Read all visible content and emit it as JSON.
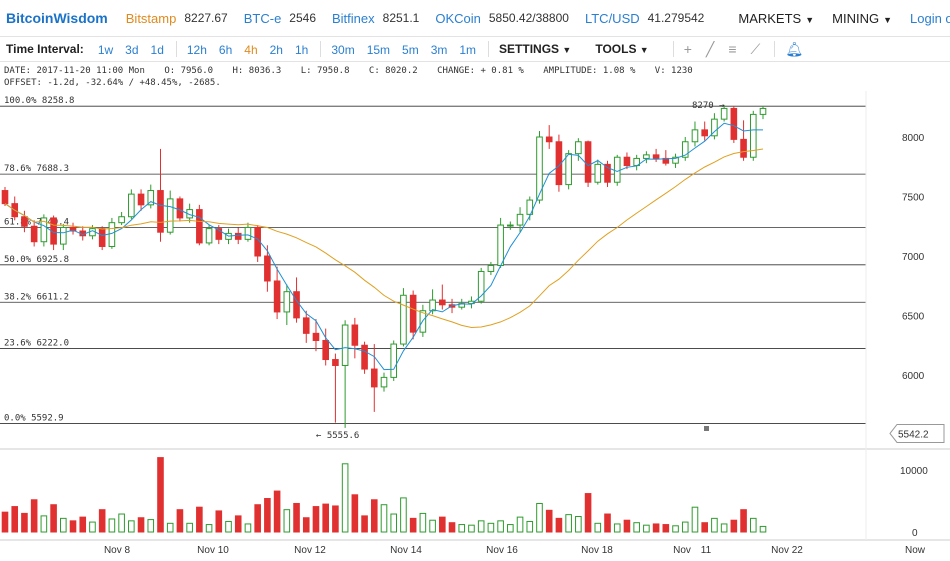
{
  "topbar": {
    "brand": "BitcoinWisdom",
    "exchanges": [
      {
        "name": "Bitstamp",
        "price": "8227.67",
        "active": true
      },
      {
        "name": "BTC-e",
        "price": "2546",
        "active": false
      },
      {
        "name": "Bitfinex",
        "price": "8251.1",
        "active": false
      },
      {
        "name": "OKCoin",
        "price": "5850.42/38800",
        "active": false
      },
      {
        "name": "LTC/USD",
        "price": "41.279542",
        "active": false
      }
    ],
    "markets_label": "MARKETS",
    "mining_label": "MINING",
    "login_label": "Login or"
  },
  "toolbar": {
    "interval_label": "Time Interval:",
    "intervals_a": [
      {
        "label": "1w",
        "active": false
      },
      {
        "label": "3d",
        "active": false
      },
      {
        "label": "1d",
        "active": false
      }
    ],
    "intervals_b": [
      {
        "label": "12h",
        "active": false
      },
      {
        "label": "6h",
        "active": false
      },
      {
        "label": "4h",
        "active": true
      },
      {
        "label": "2h",
        "active": false
      },
      {
        "label": "1h",
        "active": false
      }
    ],
    "intervals_c": [
      {
        "label": "30m",
        "active": false
      },
      {
        "label": "15m",
        "active": false
      },
      {
        "label": "5m",
        "active": false
      },
      {
        "label": "3m",
        "active": false
      },
      {
        "label": "1m",
        "active": false
      }
    ],
    "settings_label": "SETTINGS",
    "tools_label": "TOOLS",
    "tool_icons": [
      "crosshair-icon",
      "line-icon",
      "menu-icon",
      "fan-icon"
    ],
    "bell_icon": "bell-icon"
  },
  "info": {
    "line1": [
      "DATE: 2017-11-20 11:00 Mon",
      "O: 7956.0",
      "H: 8036.3",
      "L: 7950.8",
      "C: 8020.2",
      "CHANGE: + 0.81 %",
      "AMPLITUDE: 1.08 %",
      "V: 1230"
    ],
    "line2": "OFFSET: -1.2d, -32.64% / +48.45%, -2685."
  },
  "chart_data": {
    "type": "candlestick",
    "interval": "4h",
    "price_axis_ticks": [
      6000,
      6500,
      7000,
      7500,
      8000
    ],
    "volume_axis_ticks": [
      0,
      10000
    ],
    "date_ticks": [
      "Nov 8",
      "Nov 10",
      "Nov 12",
      "Nov 14",
      "Nov 16",
      "Nov 18",
      "Nov",
      "11",
      "Nov 22",
      "Now"
    ],
    "current_price_label": "5542.2",
    "fib_levels": [
      {
        "label": "100.0% 8258.8",
        "value": 8258.8
      },
      {
        "label": "78.6% 7688.3",
        "value": 7688.3
      },
      {
        "label": "61.8% 7240.4",
        "value": 7240.4
      },
      {
        "label": "50.0% 6925.8",
        "value": 6925.8
      },
      {
        "label": "38.2% 6611.2",
        "value": 6611.2
      },
      {
        "label": "23.6% 6222.0",
        "value": 6222.0
      },
      {
        "label": "0.0% 5592.9",
        "value": 5592.9
      }
    ],
    "annotations": [
      {
        "text": "8270 →",
        "value": 8270
      },
      {
        "text": "← 5555.6",
        "value": 5555.6
      }
    ],
    "candles": [
      [
        7550,
        7580,
        7420,
        7440,
        3200
      ],
      [
        7440,
        7500,
        7300,
        7330,
        4100
      ],
      [
        7330,
        7380,
        7200,
        7250,
        3000
      ],
      [
        7250,
        7300,
        7080,
        7120,
        5200
      ],
      [
        7120,
        7350,
        7080,
        7320,
        2600
      ],
      [
        7320,
        7340,
        7050,
        7100,
        4400
      ],
      [
        7100,
        7270,
        7050,
        7240,
        2200
      ],
      [
        7240,
        7280,
        7180,
        7210,
        1800
      ],
      [
        7210,
        7250,
        7130,
        7170,
        2400
      ],
      [
        7170,
        7260,
        7140,
        7230,
        1600
      ],
      [
        7230,
        7250,
        7050,
        7080,
        3600
      ],
      [
        7080,
        7320,
        7060,
        7280,
        2100
      ],
      [
        7280,
        7370,
        7260,
        7330,
        2900
      ],
      [
        7330,
        7560,
        7310,
        7520,
        1800
      ],
      [
        7520,
        7560,
        7380,
        7430,
        2300
      ],
      [
        7430,
        7600,
        7400,
        7550,
        2000
      ],
      [
        7550,
        7900,
        7120,
        7200,
        12000
      ],
      [
        7200,
        7550,
        7180,
        7480,
        1400
      ],
      [
        7480,
        7500,
        7290,
        7320,
        3600
      ],
      [
        7320,
        7440,
        7280,
        7390,
        1400
      ],
      [
        7390,
        7430,
        7090,
        7110,
        4000
      ],
      [
        7110,
        7260,
        7090,
        7230,
        1200
      ],
      [
        7230,
        7260,
        7100,
        7140,
        3400
      ],
      [
        7140,
        7230,
        7100,
        7190,
        1700
      ],
      [
        7190,
        7240,
        7100,
        7140,
        2600
      ],
      [
        7140,
        7280,
        7120,
        7240,
        1300
      ],
      [
        7240,
        7260,
        6950,
        7000,
        4400
      ],
      [
        7000,
        7090,
        6700,
        6790,
        5400
      ],
      [
        6790,
        6910,
        6470,
        6530,
        6600
      ],
      [
        6530,
        6760,
        6420,
        6700,
        3600
      ],
      [
        6700,
        6820,
        6440,
        6480,
        4600
      ],
      [
        6480,
        6540,
        6270,
        6350,
        2300
      ],
      [
        6350,
        6470,
        6200,
        6290,
        4100
      ],
      [
        6290,
        6390,
        6080,
        6130,
        4500
      ],
      [
        6130,
        6180,
        5600,
        6080,
        4200
      ],
      [
        6080,
        6460,
        5555.6,
        6420,
        11000
      ],
      [
        6420,
        6480,
        6140,
        6250,
        6000
      ],
      [
        6250,
        6280,
        6010,
        6050,
        2600
      ],
      [
        6050,
        6260,
        5690,
        5900,
        5200
      ],
      [
        5900,
        6020,
        5860,
        5980,
        4400
      ],
      [
        5980,
        6290,
        5950,
        6260,
        2900
      ],
      [
        6260,
        6730,
        6240,
        6670,
        5500
      ],
      [
        6670,
        6710,
        6300,
        6360,
        2200
      ],
      [
        6360,
        6590,
        6320,
        6540,
        3000
      ],
      [
        6540,
        6720,
        6510,
        6630,
        1900
      ],
      [
        6630,
        6760,
        6550,
        6590,
        2400
      ],
      [
        6590,
        6640,
        6520,
        6570,
        1500
      ],
      [
        6570,
        6640,
        6550,
        6600,
        1200
      ],
      [
        6600,
        6660,
        6560,
        6620,
        1100
      ],
      [
        6620,
        6900,
        6600,
        6870,
        1800
      ],
      [
        6870,
        6950,
        6840,
        6920,
        1400
      ],
      [
        6920,
        7320,
        6900,
        7260,
        1800
      ],
      [
        7260,
        7290,
        7220,
        7260,
        1200
      ],
      [
        7260,
        7410,
        7200,
        7350,
        2400
      ],
      [
        7350,
        7500,
        7300,
        7470,
        1700
      ],
      [
        7470,
        8050,
        7440,
        8000,
        4600
      ],
      [
        8000,
        8100,
        7900,
        7960,
        3500
      ],
      [
        7960,
        8020,
        7540,
        7600,
        2200
      ],
      [
        7600,
        7890,
        7560,
        7860,
        2800
      ],
      [
        7860,
        7990,
        7800,
        7960,
        2500
      ],
      [
        7960,
        7970,
        7580,
        7620,
        6200
      ],
      [
        7620,
        7810,
        7600,
        7770,
        1400
      ],
      [
        7770,
        7800,
        7580,
        7620,
        2900
      ],
      [
        7620,
        7850,
        7590,
        7830,
        1300
      ],
      [
        7830,
        7870,
        7730,
        7760,
        1900
      ],
      [
        7760,
        7850,
        7720,
        7820,
        1500
      ],
      [
        7820,
        7880,
        7780,
        7850,
        1100
      ],
      [
        7850,
        7900,
        7790,
        7820,
        1300
      ],
      [
        7820,
        7890,
        7760,
        7780,
        1200
      ],
      [
        7780,
        7860,
        7740,
        7830,
        1000
      ],
      [
        7830,
        8000,
        7800,
        7960,
        1600
      ],
      [
        7960,
        8130,
        7920,
        8060,
        4000
      ],
      [
        8060,
        8130,
        7970,
        8010,
        1500
      ],
      [
        8010,
        8200,
        7980,
        8150,
        2200
      ],
      [
        8150,
        8270,
        8130,
        8240,
        1300
      ],
      [
        8240,
        8260,
        7950,
        7980,
        1900
      ],
      [
        7980,
        8140,
        7800,
        7830,
        3600
      ],
      [
        7830,
        8220,
        7800,
        8190,
        2200
      ],
      [
        8190,
        8260,
        8150,
        8240,
        900
      ]
    ]
  }
}
